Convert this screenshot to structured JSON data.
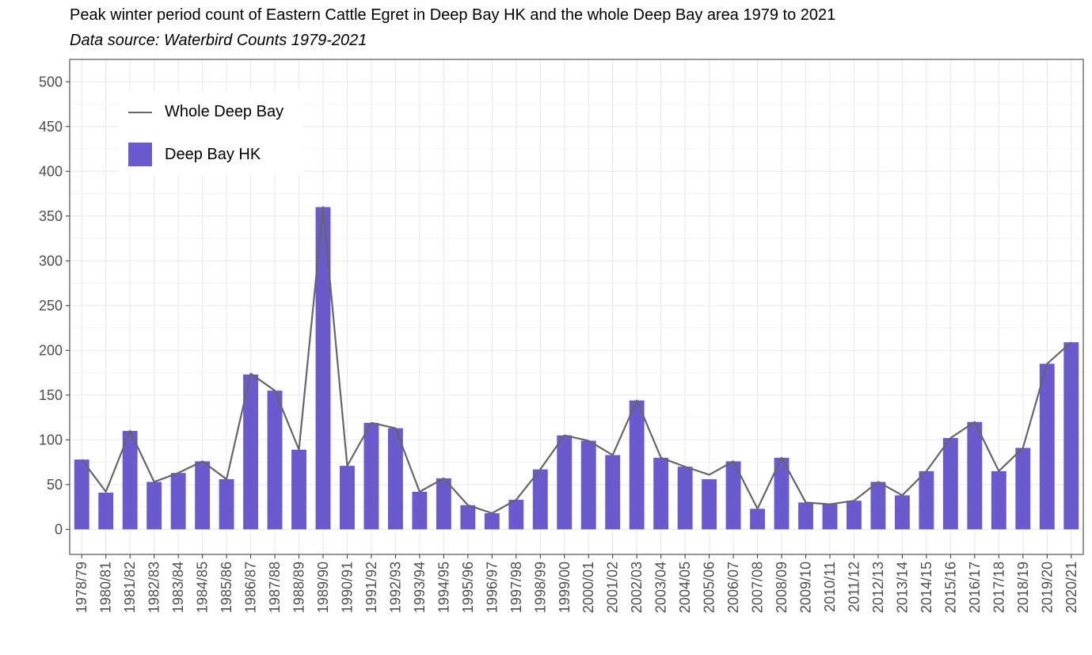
{
  "title": "Peak winter period count of Eastern Cattle Egret in Deep Bay HK and the whole Deep Bay area 1979 to 2021",
  "subtitle": "Data source: Waterbird Counts 1979-2021",
  "colors": {
    "bar": "#6a5acd",
    "line": "#666666",
    "grid": "#ebebeb",
    "panel_border": "#333333"
  },
  "chart_data": {
    "type": "bar",
    "categories": [
      "1978/79",
      "1980/81",
      "1981/82",
      "1982/83",
      "1983/84",
      "1984/85",
      "1985/86",
      "1986/87",
      "1987/88",
      "1988/89",
      "1989/90",
      "1990/91",
      "1991/92",
      "1992/93",
      "1993/94",
      "1994/95",
      "1995/96",
      "1996/97",
      "1997/98",
      "1998/99",
      "1999/00",
      "2000/01",
      "2001/02",
      "2002/03",
      "2003/04",
      "2004/05",
      "2005/06",
      "2006/07",
      "2007/08",
      "2008/09",
      "2009/10",
      "2010/11",
      "2011/12",
      "2012/13",
      "2013/14",
      "2014/15",
      "2015/16",
      "2016/17",
      "2017/18",
      "2018/19",
      "2019/20",
      "2020/21"
    ],
    "series": [
      {
        "name": "Deep Bay HK",
        "kind": "bar",
        "values": [
          78,
          41,
          110,
          53,
          63,
          76,
          56,
          173,
          155,
          89,
          360,
          71,
          119,
          113,
          42,
          57,
          27,
          18,
          33,
          67,
          105,
          99,
          83,
          144,
          80,
          70,
          56,
          76,
          23,
          80,
          30,
          28,
          32,
          53,
          38,
          65,
          102,
          120,
          65,
          91,
          185,
          209
        ]
      },
      {
        "name": "Whole Deep Bay",
        "kind": "line",
        "values": [
          78,
          42,
          110,
          53,
          63,
          76,
          56,
          174,
          155,
          89,
          360,
          71,
          119,
          113,
          42,
          57,
          27,
          18,
          33,
          67,
          105,
          99,
          83,
          144,
          80,
          70,
          61,
          76,
          23,
          80,
          30,
          28,
          32,
          53,
          38,
          65,
          102,
          120,
          65,
          91,
          185,
          209
        ]
      }
    ],
    "yticks": [
      0,
      50,
      100,
      150,
      200,
      250,
      300,
      350,
      400,
      450,
      500
    ],
    "ylim": [
      -28,
      525
    ],
    "xlabel": "",
    "ylabel": "",
    "grid": true,
    "legend_position": "top-left"
  }
}
